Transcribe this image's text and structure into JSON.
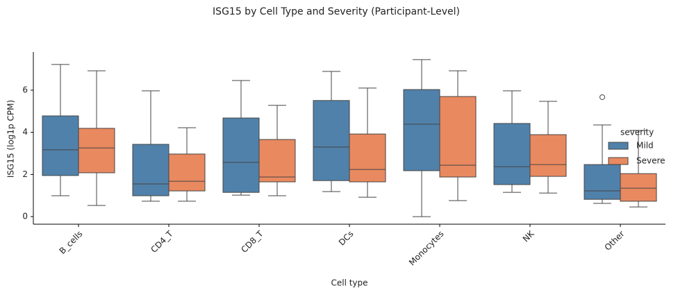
{
  "chart_data": {
    "type": "box",
    "title": "ISG15 by Cell Type and Severity (Participant-Level)",
    "x_label": "Cell type",
    "y_label": "ISG15 (log1p CPM)",
    "categories": [
      "B_cells",
      "CD4_T",
      "CD8_T",
      "DCs",
      "Monocytes",
      "NK",
      "Other"
    ],
    "ylim": [
      -0.36,
      7.81
    ],
    "yticks": [
      0,
      2,
      4,
      6
    ],
    "legend": "right",
    "legend_title": "severity",
    "series": [
      {
        "name": "Mild",
        "color": "#5081aa",
        "stats": [
          {
            "low": 0.99,
            "q1": 1.95,
            "median": 3.17,
            "q3": 4.78,
            "high": 7.22
          },
          {
            "low": 0.73,
            "q1": 0.99,
            "median": 1.55,
            "q3": 3.43,
            "high": 5.97
          },
          {
            "low": 1.02,
            "q1": 1.15,
            "median": 2.57,
            "q3": 4.68,
            "high": 6.46
          },
          {
            "low": 1.19,
            "q1": 1.71,
            "median": 3.3,
            "q3": 5.51,
            "high": 6.89
          },
          {
            "low": 0,
            "q1": 2.18,
            "median": 4.39,
            "q3": 6.03,
            "high": 7.45
          },
          {
            "low": 1.15,
            "q1": 1.52,
            "median": 2.37,
            "q3": 4.42,
            "high": 5.97
          },
          {
            "low": 0.63,
            "q1": 0.82,
            "median": 1.22,
            "q3": 2.47,
            "high": 4.35,
            "outliers": [
              5.67
            ]
          }
        ]
      },
      {
        "name": "Severe",
        "color": "#e9895f",
        "stats": [
          {
            "low": 0.53,
            "q1": 2.08,
            "median": 3.26,
            "q3": 4.19,
            "high": 6.92
          },
          {
            "low": 0.73,
            "q1": 1.22,
            "median": 1.68,
            "q3": 2.97,
            "high": 4.22
          },
          {
            "low": 0.99,
            "q1": 1.65,
            "median": 1.88,
            "q3": 3.66,
            "high": 5.28
          },
          {
            "low": 0.92,
            "q1": 1.65,
            "median": 2.24,
            "q3": 3.92,
            "high": 6.1
          },
          {
            "low": 0.76,
            "q1": 1.88,
            "median": 2.44,
            "q3": 5.7,
            "high": 6.92
          },
          {
            "low": 1.12,
            "q1": 1.91,
            "median": 2.47,
            "q3": 3.89,
            "high": 5.47
          },
          {
            "low": 0.46,
            "q1": 0.73,
            "median": 1.35,
            "q3": 2.04,
            "high": 4.09
          }
        ]
      }
    ]
  }
}
